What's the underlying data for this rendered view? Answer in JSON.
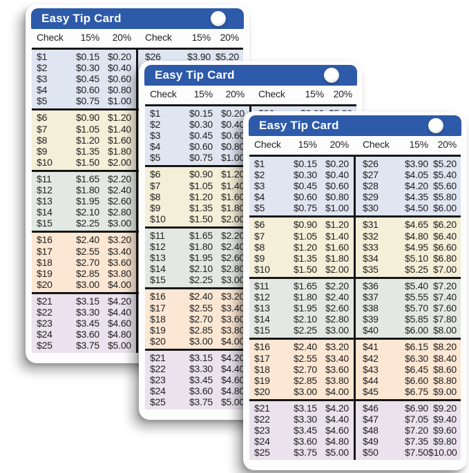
{
  "card": {
    "title": "Easy Tip Card",
    "columns": [
      "Check",
      "15%",
      "20%",
      "Check",
      "15%",
      "20%"
    ],
    "bands": [
      {
        "bg": "#e0e5f2",
        "rows": [
          [
            "$1",
            "$0.15",
            "$0.20",
            "$26",
            "$3.90",
            "$5.20"
          ],
          [
            "$2",
            "$0.30",
            "$0.40",
            "$27",
            "$4.05",
            "$5.40"
          ],
          [
            "$3",
            "$0.45",
            "$0.60",
            "$28",
            "$4.20",
            "$5.60"
          ],
          [
            "$4",
            "$0.60",
            "$0.80",
            "$29",
            "$4.35",
            "$5.80"
          ],
          [
            "$5",
            "$0.75",
            "$1.00",
            "$30",
            "$4.50",
            "$6.00"
          ]
        ]
      },
      {
        "bg": "#f4efd8",
        "rows": [
          [
            "$6",
            "$0.90",
            "$1.20",
            "$31",
            "$4.65",
            "$6.20"
          ],
          [
            "$7",
            "$1.05",
            "$1.40",
            "$32",
            "$4.80",
            "$6.40"
          ],
          [
            "$8",
            "$1.20",
            "$1.60",
            "$33",
            "$4.95",
            "$6.60"
          ],
          [
            "$9",
            "$1.35",
            "$1.80",
            "$34",
            "$5.10",
            "$6.80"
          ],
          [
            "$10",
            "$1.50",
            "$2.00",
            "$35",
            "$5.25",
            "$7.00"
          ]
        ]
      },
      {
        "bg": "#e3e9e2",
        "rows": [
          [
            "$11",
            "$1.65",
            "$2.20",
            "$36",
            "$5.40",
            "$7.20"
          ],
          [
            "$12",
            "$1.80",
            "$2.40",
            "$37",
            "$5.55",
            "$7.40"
          ],
          [
            "$13",
            "$1.95",
            "$2.60",
            "$38",
            "$5.70",
            "$7.60"
          ],
          [
            "$14",
            "$2.10",
            "$2.80",
            "$39",
            "$5.85",
            "$7.80"
          ],
          [
            "$15",
            "$2.25",
            "$3.00",
            "$40",
            "$6.00",
            "$8.00"
          ]
        ]
      },
      {
        "bg": "#fbe7d3",
        "rows": [
          [
            "$16",
            "$2.40",
            "$3.20",
            "$41",
            "$6.15",
            "$8.20"
          ],
          [
            "$17",
            "$2.55",
            "$3.40",
            "$42",
            "$6.30",
            "$8.40"
          ],
          [
            "$18",
            "$2.70",
            "$3.60",
            "$43",
            "$6.45",
            "$8.60"
          ],
          [
            "$19",
            "$2.85",
            "$3.80",
            "$44",
            "$6.60",
            "$8.80"
          ],
          [
            "$20",
            "$3.00",
            "$4.00",
            "$45",
            "$6.75",
            "$9.00"
          ]
        ]
      },
      {
        "bg": "#eae2ec",
        "rows": [
          [
            "$21",
            "$3.15",
            "$4.20",
            "$46",
            "$6.90",
            "$9.20"
          ],
          [
            "$22",
            "$3.30",
            "$4.40",
            "$47",
            "$7.05",
            "$9.40"
          ],
          [
            "$23",
            "$3.45",
            "$4.60",
            "$48",
            "$7.20",
            "$9.60"
          ],
          [
            "$24",
            "$3.60",
            "$4.80",
            "$49",
            "$7.35",
            "$9.80"
          ],
          [
            "$25",
            "$3.75",
            "$5.00",
            "$50",
            "$7.50",
            "$10.00"
          ]
        ]
      }
    ]
  },
  "colors": {
    "header_blue": "#2d5aa9",
    "line": "#161616",
    "text": "#1f1f1f",
    "band_bgs": [
      "#e0e5f2",
      "#f4efd8",
      "#e3e9e2",
      "#fbe7d3",
      "#eae2ec"
    ]
  }
}
